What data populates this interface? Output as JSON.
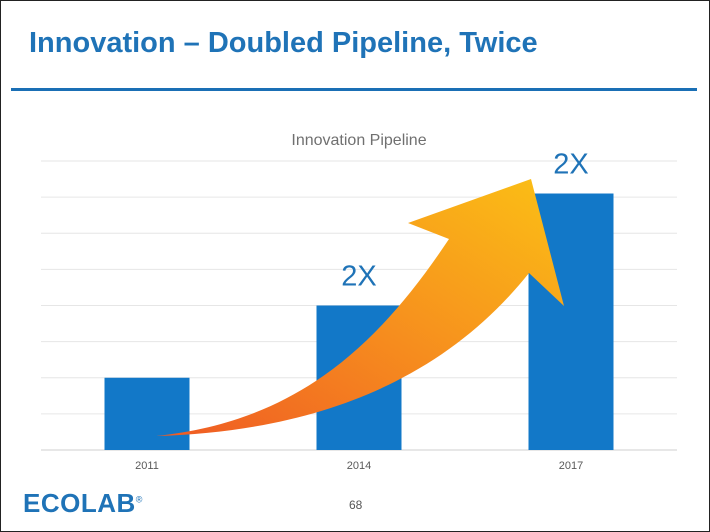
{
  "slide": {
    "title": "Innovation – Doubled Pipeline, Twice",
    "page_number": "68"
  },
  "logo": {
    "text": "ECOLAB",
    "mark": "®"
  },
  "colors": {
    "accent": "#1f73b7",
    "bar": "#1278c8",
    "arrow_start": "#ef5a24",
    "arrow_end": "#fbc015"
  },
  "chart_data": {
    "type": "bar",
    "title": "Innovation Pipeline",
    "categories": [
      "2011",
      "2014",
      "2017"
    ],
    "values": [
      1,
      2,
      3.55
    ],
    "annotations": [
      {
        "category": "2014",
        "text": "2X"
      },
      {
        "category": "2017",
        "text": "2X"
      }
    ],
    "ylim": [
      0,
      4
    ],
    "grid": true,
    "legend": "none"
  }
}
